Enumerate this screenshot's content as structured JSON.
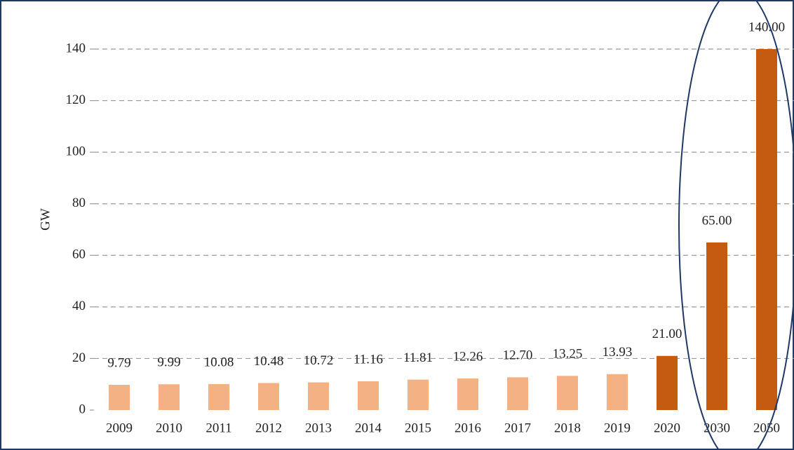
{
  "chart_data": {
    "type": "bar",
    "y_label": "GW",
    "categories": [
      "2009",
      "2010",
      "2011",
      "2012",
      "2013",
      "2014",
      "2015",
      "2016",
      "2017",
      "2018",
      "2019",
      "2020",
      "2030",
      "2050"
    ],
    "values": [
      9.79,
      9.99,
      10.08,
      10.48,
      10.72,
      11.16,
      11.81,
      12.26,
      12.7,
      13.25,
      13.93,
      21.0,
      65.0,
      140.0
    ],
    "value_labels": [
      "9.79",
      "9.99",
      "10.08",
      "10.48",
      "10.72",
      "11.16",
      "11.81",
      "12.26",
      "12.70",
      "13.25",
      "13.93",
      "21.00",
      "65.00",
      "140.00"
    ],
    "colors": [
      "#f4b183",
      "#f4b183",
      "#f4b183",
      "#f4b183",
      "#f4b183",
      "#f4b183",
      "#f4b183",
      "#f4b183",
      "#f4b183",
      "#f4b183",
      "#f4b183",
      "#c55a11",
      "#c55a11",
      "#c55a11"
    ],
    "ylim": [
      0,
      140
    ],
    "yticks": [
      0,
      20,
      40,
      60,
      80,
      100,
      120,
      140
    ],
    "grid": true
  }
}
